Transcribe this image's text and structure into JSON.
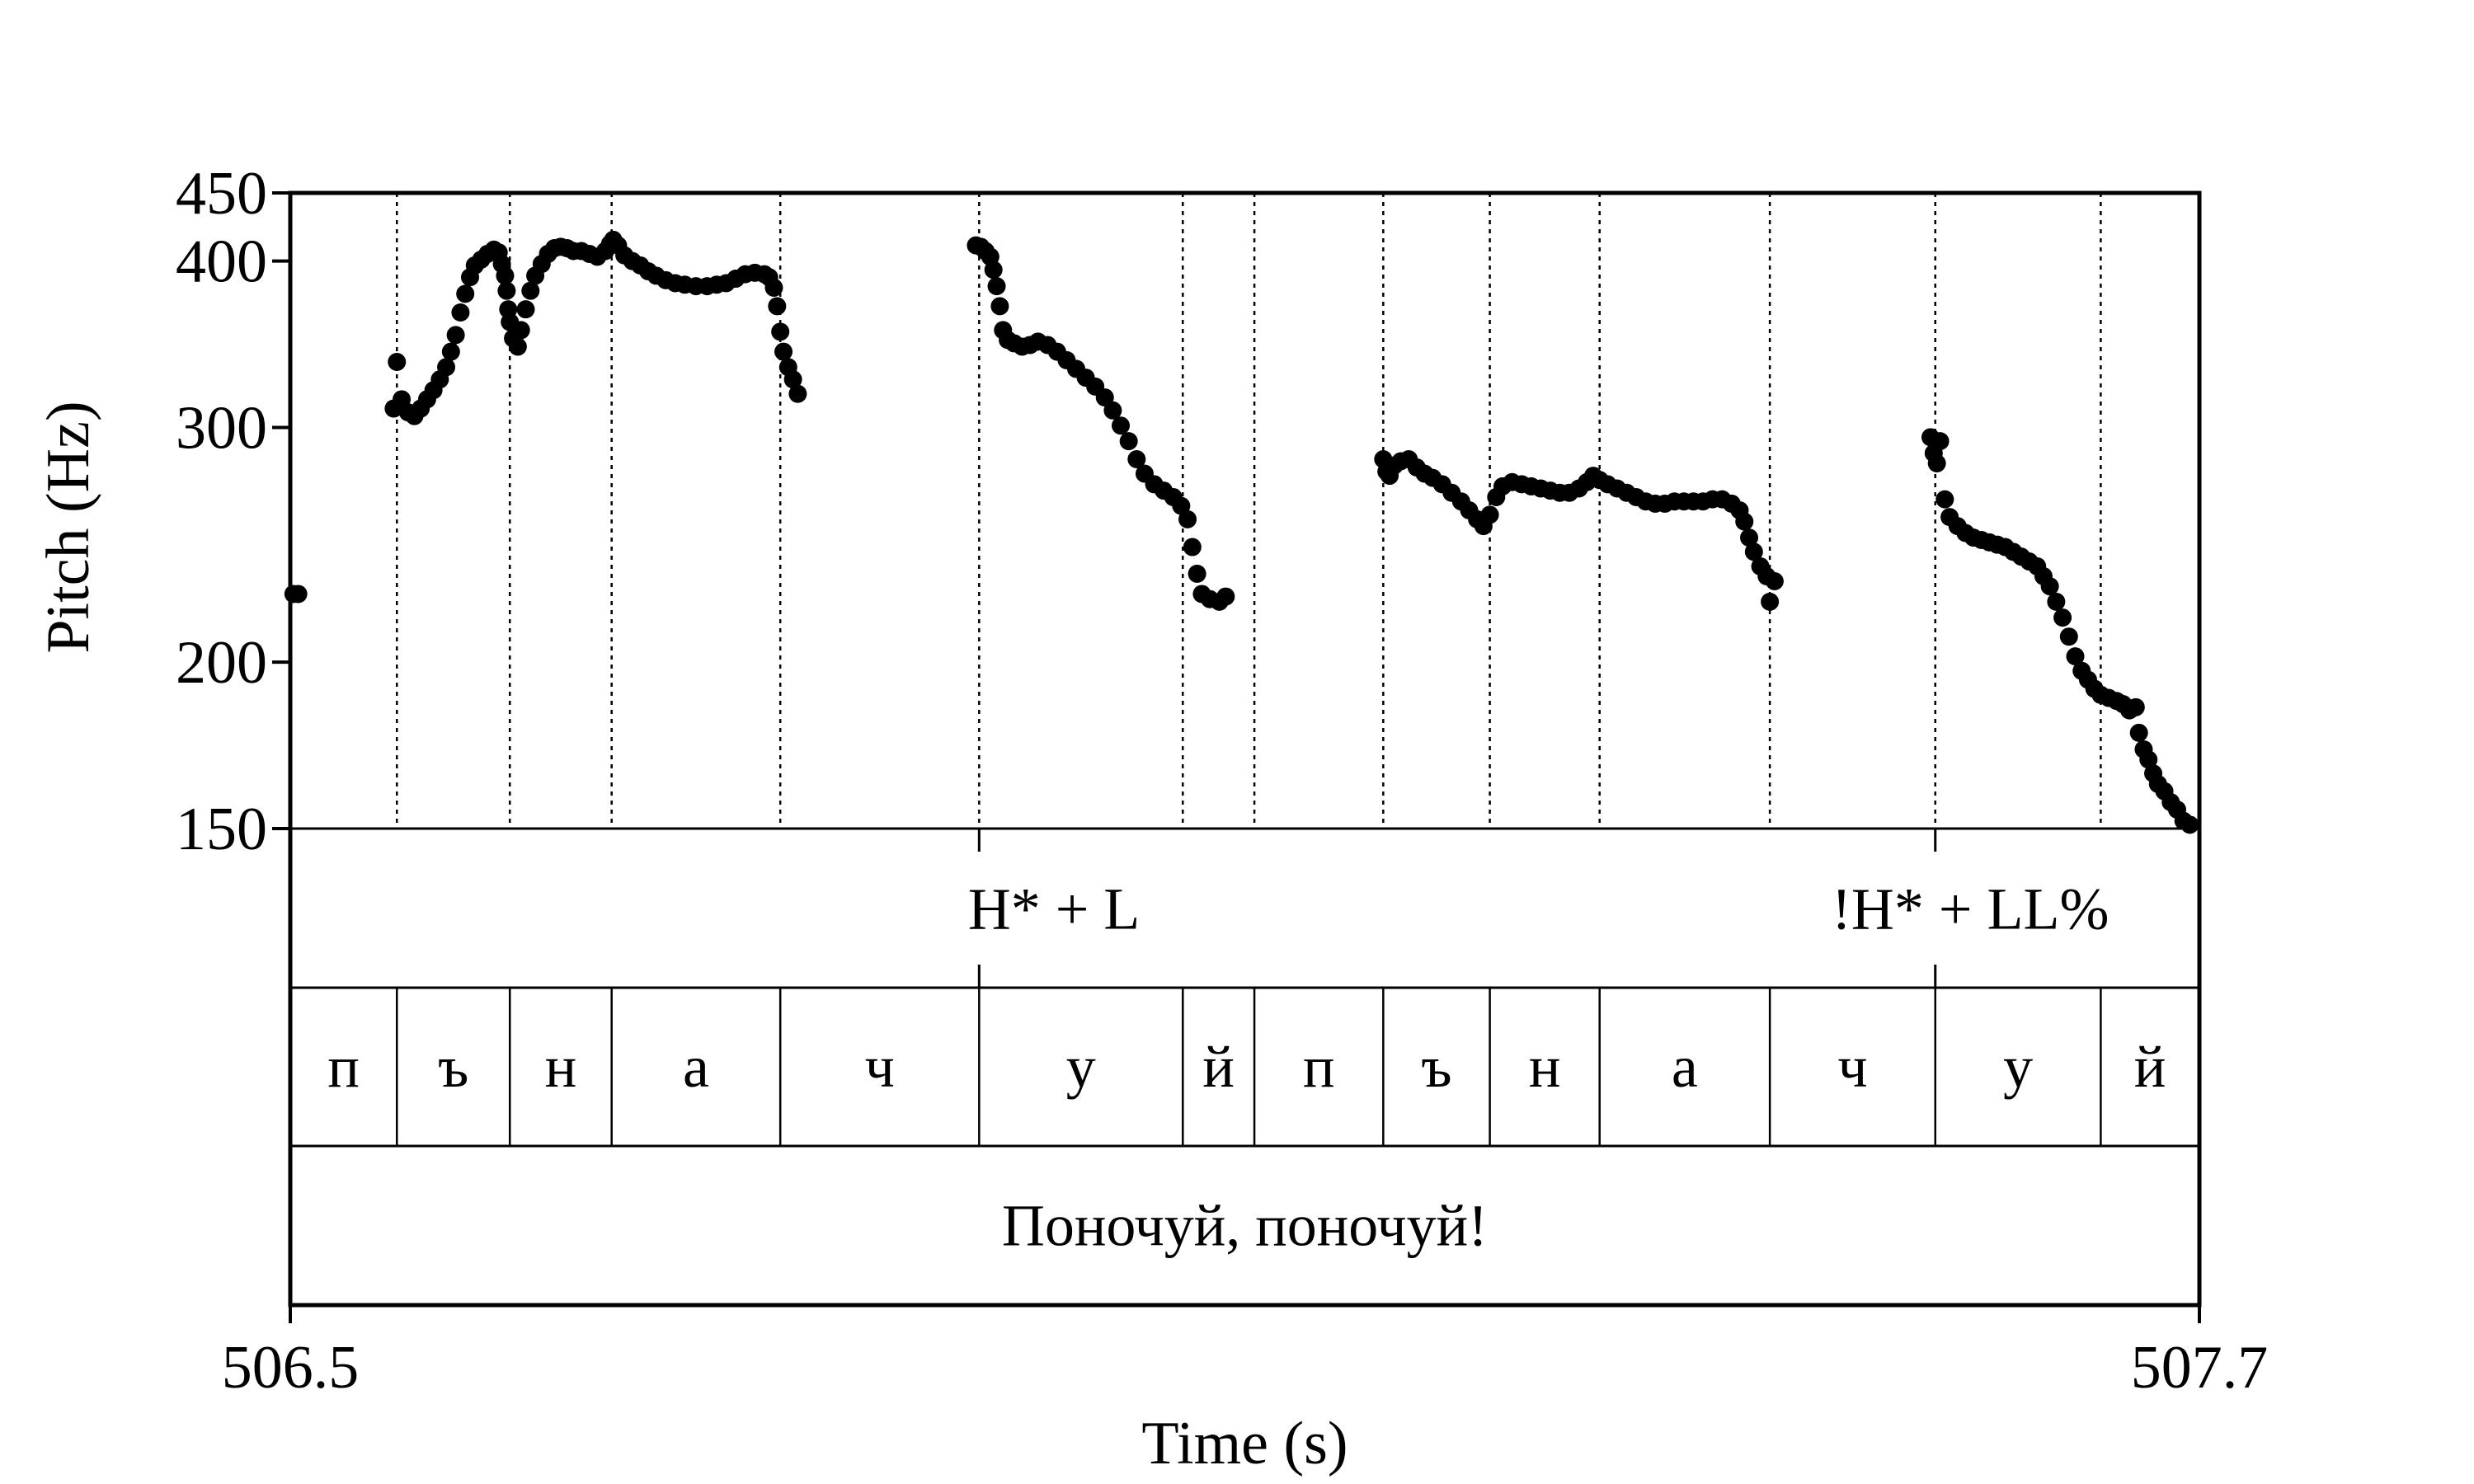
{
  "chart_data": {
    "type": "scatter",
    "title": "",
    "xlabel": "Time (s)",
    "ylabel": "Pitch (Hz)",
    "xlim": [
      506.5,
      507.7
    ],
    "ylim": [
      150,
      450
    ],
    "x_ticks": [
      "506.5",
      "507.7"
    ],
    "y_ticks": [
      {
        "value": 150,
        "label": "150"
      },
      {
        "value": 200,
        "label": "200"
      },
      {
        "value": 300,
        "label": "300"
      },
      {
        "value": 400,
        "label": "400"
      },
      {
        "value": 450,
        "label": "450"
      }
    ],
    "grid": false,
    "point_color": "#000000",
    "segment_boundaries": [
      506.567,
      506.638,
      506.702,
      506.808,
      506.933,
      507.061,
      507.106,
      507.187,
      507.254,
      507.323,
      507.43,
      507.534,
      507.638
    ],
    "tone_boundaries": [
      506.933,
      507.534
    ],
    "tone_labels": [
      {
        "time": 506.98,
        "label": "H* + L"
      },
      {
        "time": 507.556,
        "label": "!H* + LL%"
      }
    ],
    "segments": [
      {
        "start": 506.5,
        "end": 506.567,
        "label": "п"
      },
      {
        "start": 506.567,
        "end": 506.638,
        "label": "ъ"
      },
      {
        "start": 506.638,
        "end": 506.702,
        "label": "н"
      },
      {
        "start": 506.702,
        "end": 506.808,
        "label": "а"
      },
      {
        "start": 506.808,
        "end": 506.933,
        "label": "ч"
      },
      {
        "start": 506.933,
        "end": 507.061,
        "label": "у"
      },
      {
        "start": 507.061,
        "end": 507.106,
        "label": "й"
      },
      {
        "start": 507.106,
        "end": 507.187,
        "label": "п"
      },
      {
        "start": 507.187,
        "end": 507.254,
        "label": "ъ"
      },
      {
        "start": 507.254,
        "end": 507.323,
        "label": "н"
      },
      {
        "start": 507.323,
        "end": 507.43,
        "label": "а"
      },
      {
        "start": 507.43,
        "end": 507.534,
        "label": "ч"
      },
      {
        "start": 507.534,
        "end": 507.638,
        "label": "у"
      },
      {
        "start": 507.638,
        "end": 507.7,
        "label": "й"
      }
    ],
    "sentence": "Поночуй, поночуй!",
    "series": [
      {
        "points": [
          [
            506.502,
            225
          ],
          [
            506.505,
            225
          ]
        ]
      },
      {
        "points": [
          [
            506.565,
            310
          ],
          [
            506.567,
            336
          ],
          [
            506.57,
            315
          ],
          [
            506.574,
            308
          ],
          [
            506.578,
            306
          ],
          [
            506.582,
            310
          ],
          [
            506.586,
            315
          ],
          [
            506.59,
            320
          ],
          [
            506.594,
            326
          ],
          [
            506.598,
            333
          ],
          [
            506.601,
            342
          ],
          [
            506.604,
            352
          ],
          [
            506.607,
            366
          ],
          [
            506.61,
            378
          ],
          [
            506.613,
            389
          ],
          [
            506.616,
            397
          ],
          [
            506.62,
            401
          ],
          [
            506.624,
            405
          ],
          [
            506.628,
            408
          ],
          [
            506.631,
            406
          ],
          [
            506.633,
            398
          ],
          [
            506.635,
            390
          ],
          [
            506.636,
            380
          ],
          [
            506.637,
            368
          ],
          [
            506.638,
            360
          ],
          [
            506.64,
            350
          ],
          [
            506.643,
            345
          ],
          [
            506.645,
            355
          ],
          [
            506.648,
            368
          ],
          [
            506.651,
            380
          ],
          [
            506.654,
            390
          ],
          [
            506.658,
            398
          ],
          [
            506.662,
            405
          ],
          [
            506.666,
            409
          ],
          [
            506.67,
            410
          ],
          [
            506.674,
            409
          ],
          [
            506.678,
            407
          ],
          [
            506.683,
            407
          ],
          [
            506.688,
            405
          ],
          [
            506.693,
            403
          ],
          [
            506.698,
            407
          ],
          [
            506.701,
            412
          ],
          [
            506.703,
            415
          ],
          [
            506.706,
            411
          ],
          [
            506.71,
            404
          ],
          [
            506.715,
            400
          ],
          [
            506.72,
            397
          ],
          [
            506.725,
            393
          ],
          [
            506.73,
            390
          ],
          [
            506.736,
            387
          ],
          [
            506.742,
            385
          ],
          [
            506.748,
            384
          ],
          [
            506.755,
            383
          ],
          [
            506.762,
            383
          ],
          [
            506.768,
            384
          ],
          [
            506.774,
            385
          ],
          [
            506.78,
            388
          ],
          [
            506.786,
            391
          ],
          [
            506.792,
            392
          ],
          [
            506.798,
            391
          ],
          [
            506.801,
            389
          ],
          [
            506.804,
            382
          ],
          [
            506.806,
            370
          ],
          [
            506.808,
            354
          ],
          [
            506.81,
            342
          ],
          [
            506.813,
            333
          ],
          [
            506.816,
            326
          ],
          [
            506.819,
            318
          ]
        ]
      },
      {
        "points": [
          [
            506.931,
            411
          ],
          [
            506.934,
            410
          ],
          [
            506.937,
            407
          ],
          [
            506.94,
            403
          ],
          [
            506.942,
            394
          ],
          [
            506.944,
            383
          ],
          [
            506.946,
            370
          ],
          [
            506.948,
            355
          ],
          [
            506.951,
            349
          ],
          [
            506.955,
            347
          ],
          [
            506.96,
            345
          ],
          [
            506.965,
            346
          ],
          [
            506.97,
            348
          ],
          [
            506.976,
            346
          ],
          [
            506.982,
            342
          ],
          [
            506.988,
            337
          ],
          [
            506.994,
            332
          ],
          [
            507.0,
            327
          ],
          [
            507.006,
            322
          ],
          [
            507.012,
            316
          ],
          [
            507.017,
            309
          ],
          [
            507.022,
            301
          ],
          [
            507.027,
            293
          ],
          [
            507.032,
            284
          ],
          [
            507.037,
            277
          ],
          [
            507.043,
            272
          ],
          [
            507.049,
            269
          ],
          [
            507.055,
            266
          ],
          [
            507.06,
            262
          ],
          [
            507.064,
            256
          ],
          [
            507.067,
            244
          ],
          [
            507.07,
            233
          ],
          [
            507.073,
            225
          ],
          [
            507.078,
            223
          ],
          [
            507.084,
            222
          ],
          [
            507.088,
            224
          ]
        ]
      },
      {
        "points": [
          [
            507.187,
            284
          ],
          [
            507.189,
            278
          ],
          [
            507.191,
            276
          ],
          [
            507.194,
            281
          ],
          [
            507.198,
            283
          ],
          [
            507.203,
            284
          ],
          [
            507.208,
            280
          ],
          [
            507.213,
            277
          ],
          [
            507.218,
            275
          ],
          [
            507.224,
            272
          ],
          [
            507.23,
            268
          ],
          [
            507.236,
            264
          ],
          [
            507.241,
            260
          ],
          [
            507.246,
            256
          ],
          [
            507.25,
            253
          ],
          [
            507.254,
            258
          ],
          [
            507.258,
            266
          ],
          [
            507.262,
            271
          ],
          [
            507.268,
            273
          ],
          [
            507.274,
            272
          ],
          [
            507.28,
            271
          ],
          [
            507.286,
            270
          ],
          [
            507.292,
            269
          ],
          [
            507.298,
            268
          ],
          [
            507.304,
            268
          ],
          [
            507.31,
            270
          ],
          [
            507.315,
            273
          ],
          [
            507.319,
            276
          ],
          [
            507.323,
            274
          ],
          [
            507.328,
            272
          ],
          [
            507.334,
            270
          ],
          [
            507.34,
            268
          ],
          [
            507.346,
            266
          ],
          [
            507.352,
            264
          ],
          [
            507.358,
            263
          ],
          [
            507.364,
            263
          ],
          [
            507.37,
            264
          ],
          [
            507.376,
            264
          ],
          [
            507.382,
            264
          ],
          [
            507.388,
            264
          ],
          [
            507.394,
            265
          ],
          [
            507.4,
            265
          ],
          [
            507.406,
            263
          ],
          [
            507.411,
            260
          ],
          [
            507.414,
            255
          ],
          [
            507.417,
            248
          ],
          [
            507.42,
            242
          ],
          [
            507.424,
            236
          ],
          [
            507.428,
            232
          ],
          [
            507.43,
            222
          ],
          [
            507.433,
            230
          ]
        ]
      },
      {
        "points": [
          [
            507.531,
            295
          ],
          [
            507.533,
            287
          ],
          [
            507.535,
            282
          ],
          [
            507.537,
            293
          ],
          [
            507.54,
            265
          ],
          [
            507.543,
            257
          ],
          [
            507.548,
            253
          ],
          [
            507.553,
            250
          ],
          [
            507.558,
            248
          ],
          [
            507.563,
            247
          ],
          [
            507.568,
            246
          ],
          [
            507.573,
            245
          ],
          [
            507.578,
            244
          ],
          [
            507.583,
            242
          ],
          [
            507.588,
            240
          ],
          [
            507.593,
            238
          ],
          [
            507.598,
            236
          ],
          [
            507.602,
            232
          ],
          [
            507.606,
            228
          ],
          [
            507.61,
            222
          ],
          [
            507.614,
            216
          ],
          [
            507.618,
            209
          ],
          [
            507.622,
            202
          ],
          [
            507.626,
            197
          ],
          [
            507.63,
            194
          ],
          [
            507.634,
            191
          ],
          [
            507.638,
            189
          ],
          [
            507.643,
            188
          ],
          [
            507.648,
            187
          ],
          [
            507.652,
            186
          ],
          [
            507.656,
            184
          ],
          [
            507.66,
            185
          ],
          [
            507.662,
            177
          ],
          [
            507.665,
            172
          ],
          [
            507.668,
            169
          ],
          [
            507.671,
            165
          ],
          [
            507.674,
            162
          ],
          [
            507.678,
            160
          ],
          [
            507.682,
            157
          ],
          [
            507.686,
            155
          ],
          [
            507.69,
            152
          ],
          [
            507.694,
            151
          ]
        ]
      }
    ]
  }
}
